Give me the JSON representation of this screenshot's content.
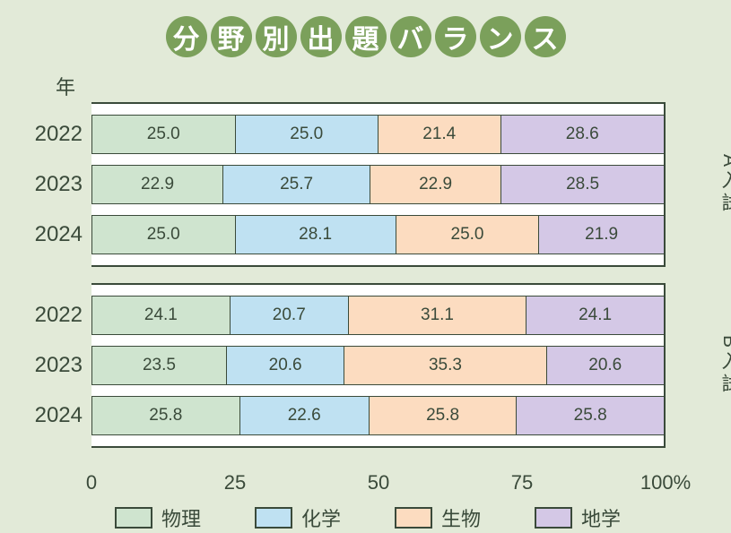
{
  "title_chars": [
    "分",
    "野",
    "別",
    "出",
    "題",
    "バ",
    "ラ",
    "ン",
    "ス"
  ],
  "year_header": "年",
  "colors": {
    "bg": "#e2ead8",
    "circle": "#7ba05b",
    "border": "#3a4a3a",
    "text": "#3a4a3a",
    "series": [
      "#cfe4cf",
      "#bfe1f2",
      "#fcdcc0",
      "#d4c8e6"
    ]
  },
  "legend": [
    {
      "label": "物理",
      "color": "#cfe4cf"
    },
    {
      "label": "化学",
      "color": "#bfe1f2"
    },
    {
      "label": "生物",
      "color": "#fcdcc0"
    },
    {
      "label": "地学",
      "color": "#d4c8e6"
    }
  ],
  "xaxis": {
    "ticks": [
      0,
      25,
      50,
      75,
      100
    ],
    "labels": [
      "0",
      "25",
      "50",
      "75",
      "100%"
    ]
  },
  "groups": [
    {
      "side_label": "A入試",
      "rows": [
        {
          "year": "2022",
          "values": [
            25.0,
            25.0,
            21.4,
            28.6
          ]
        },
        {
          "year": "2023",
          "values": [
            22.9,
            25.7,
            22.9,
            28.5
          ]
        },
        {
          "year": "2024",
          "values": [
            25.0,
            28.1,
            25.0,
            21.9
          ]
        }
      ]
    },
    {
      "side_label": "B入試",
      "rows": [
        {
          "year": "2022",
          "values": [
            24.1,
            20.7,
            31.1,
            24.1
          ]
        },
        {
          "year": "2023",
          "values": [
            23.5,
            20.6,
            35.3,
            20.6
          ]
        },
        {
          "year": "2024",
          "values": [
            25.8,
            22.6,
            25.8,
            25.8
          ]
        }
      ]
    }
  ]
}
